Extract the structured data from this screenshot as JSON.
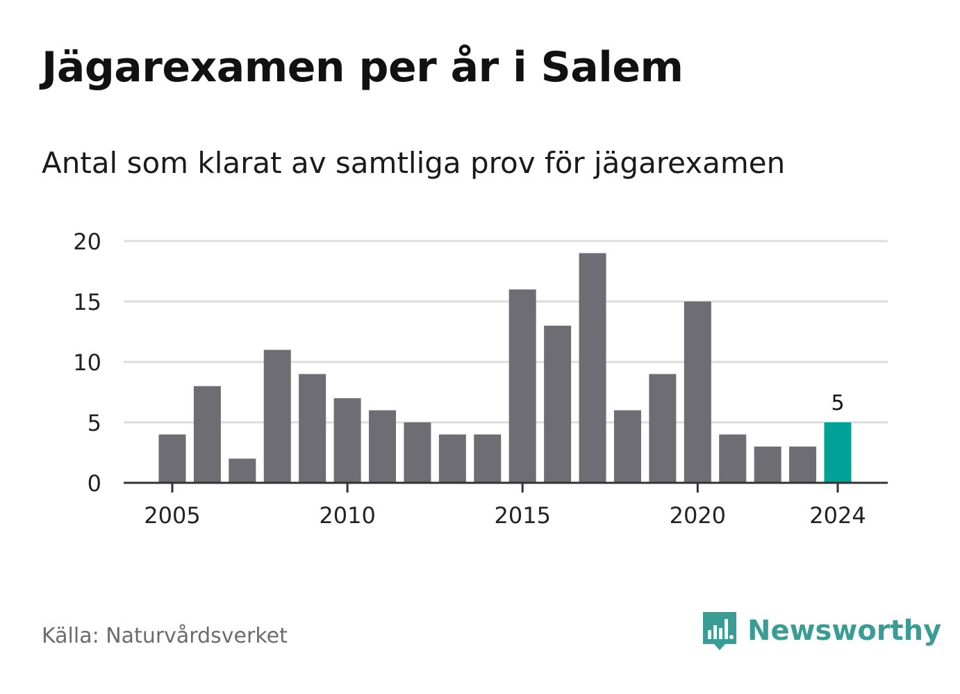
{
  "header": {
    "title": "Jägarexamen per år i Salem",
    "subtitle": "Antal som klarat av samtliga prov för jägarexamen"
  },
  "footer": {
    "source": "Källa: Naturvårdsverket",
    "brand": "Newsworthy",
    "brand_icon": "bar-chart-speech-bubble-icon"
  },
  "colors": {
    "bar": "#6e6d73",
    "highlight": "#00a196",
    "grid": "#dcdcdc",
    "axis": "#333333",
    "brand": "#3a9d95"
  },
  "chart_data": {
    "type": "bar",
    "x": [
      2005,
      2006,
      2007,
      2008,
      2009,
      2010,
      2011,
      2012,
      2013,
      2014,
      2015,
      2016,
      2017,
      2018,
      2019,
      2020,
      2021,
      2022,
      2023,
      2024
    ],
    "values": [
      4,
      8,
      2,
      11,
      9,
      7,
      6,
      5,
      4,
      4,
      16,
      13,
      19,
      6,
      9,
      15,
      4,
      3,
      3,
      5
    ],
    "x_ticks": [
      "2005",
      "2010",
      "2015",
      "2020",
      "2024"
    ],
    "y_ticks": [
      "0",
      "5",
      "10",
      "15",
      "20"
    ],
    "ylim": [
      0,
      20
    ],
    "highlight": {
      "x": 2024,
      "label": "5"
    },
    "grid": true,
    "legend": "none"
  }
}
